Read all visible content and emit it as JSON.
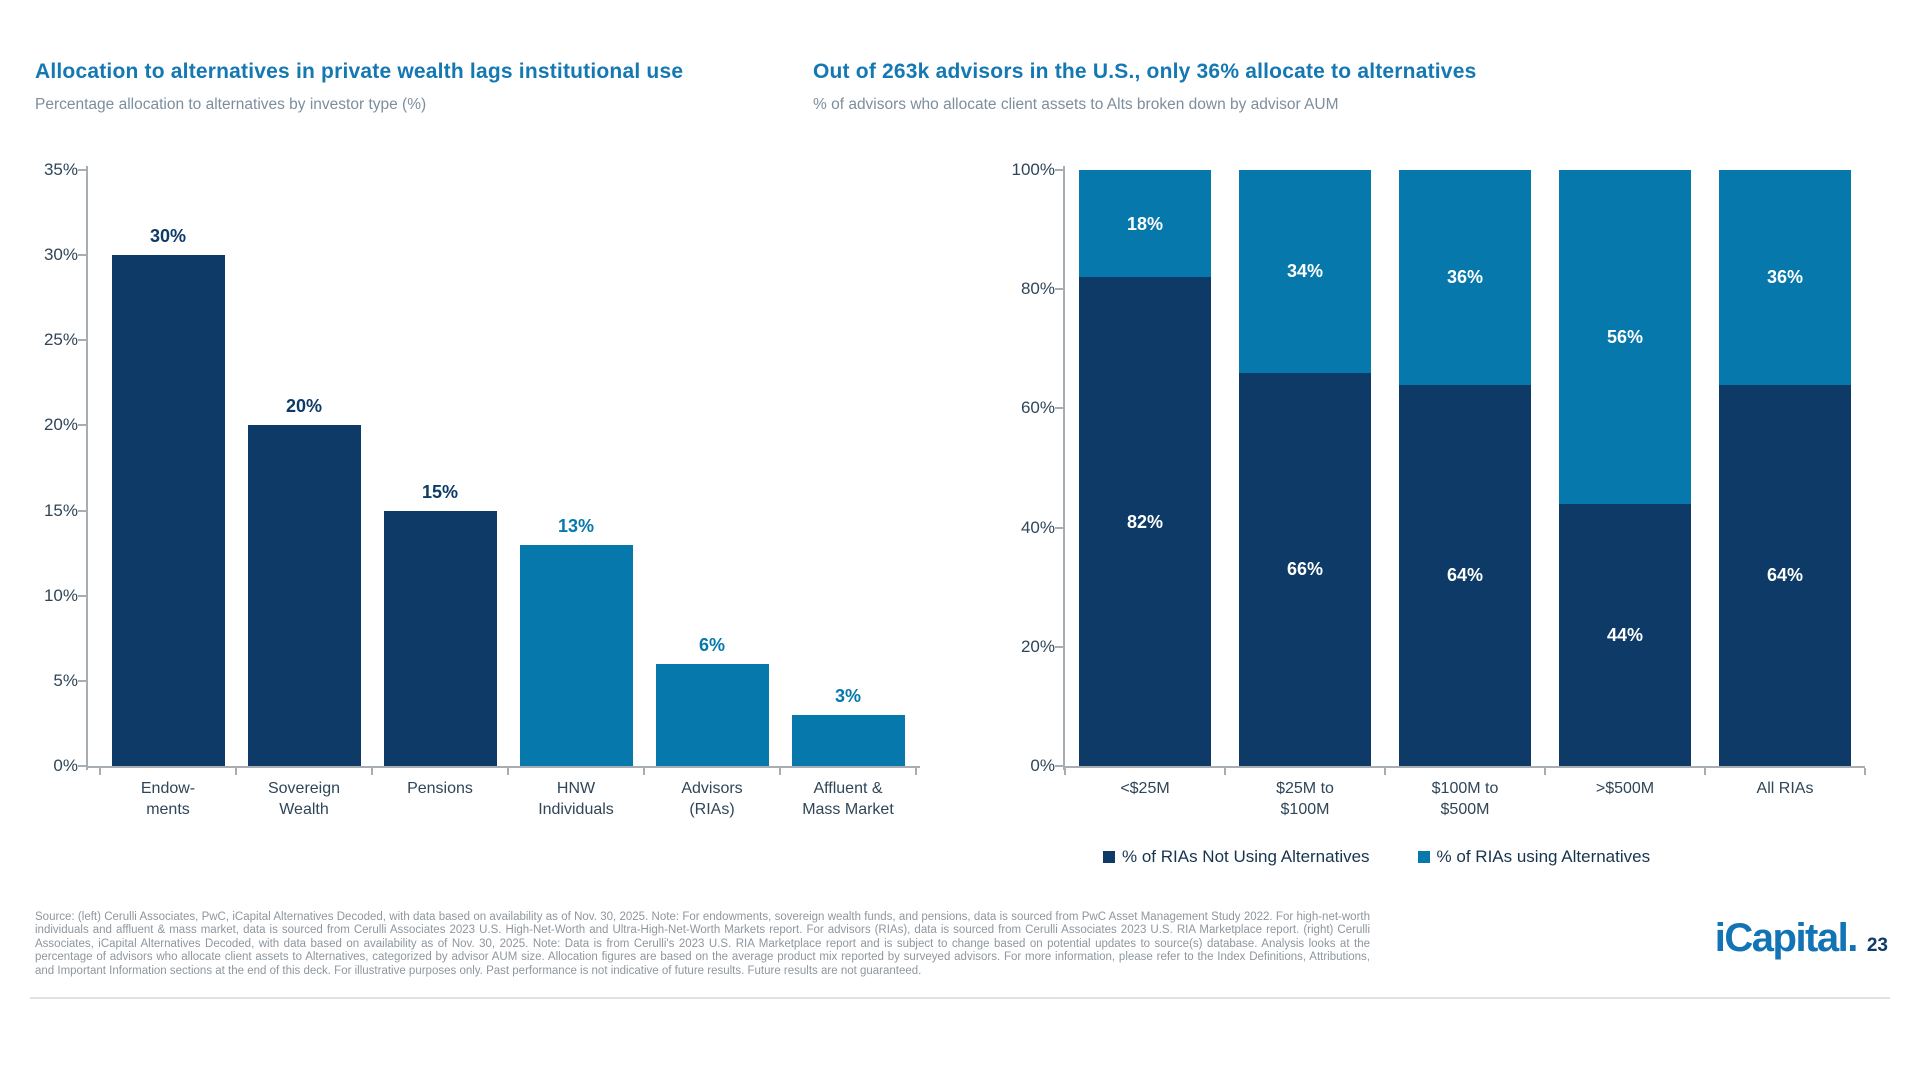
{
  "slide": {
    "background": "#ffffff"
  },
  "chart_data": [
    {
      "type": "bar",
      "title": "Allocation to alternatives in private wealth lags institutional use",
      "subtitle": "Percentage allocation to alternatives by investor type (%)",
      "categories": [
        [
          "Endow-",
          "ments"
        ],
        [
          "Sovereign",
          "Wealth"
        ],
        [
          "Pensions"
        ],
        [
          "HNW",
          "Individuals"
        ],
        [
          "Advisors",
          "(RIAs)"
        ],
        [
          "Affluent &",
          "Mass Market"
        ]
      ],
      "values": [
        30,
        20,
        15,
        13,
        6,
        3
      ],
      "value_labels": [
        "30%",
        "20%",
        "15%",
        "13%",
        "6%",
        "3%"
      ],
      "bar_colors": [
        "#0d3a67",
        "#0d3a67",
        "#0d3a67",
        "#0678ab",
        "#0678ab",
        "#0678ab"
      ],
      "xlabel": "",
      "ylabel": "",
      "ylim": [
        0,
        35
      ],
      "ytick_step": 5,
      "ytick_labels": [
        "0%",
        "5%",
        "10%",
        "15%",
        "20%",
        "25%",
        "30%",
        "35%"
      ],
      "grid": false,
      "legend_position": "none"
    },
    {
      "type": "stacked-bar",
      "title": "Out of 263k advisors in the U.S., only 36% allocate to alternatives",
      "subtitle": "% of advisors who allocate client assets to Alts broken down by advisor AUM",
      "categories": [
        [
          "<$25M"
        ],
        [
          "$25M to",
          "$100M"
        ],
        [
          "$100M to",
          "$500M"
        ],
        [
          ">$500M"
        ],
        [
          "All RIAs"
        ]
      ],
      "series": [
        {
          "name": "% of RIAs Not Using Alternatives",
          "color": "#0d3a67",
          "values": [
            82,
            66,
            64,
            44,
            64
          ],
          "value_labels": [
            "82%",
            "66%",
            "64%",
            "44%",
            "64%"
          ]
        },
        {
          "name": "% of RIAs using Alternatives",
          "color": "#0678ab",
          "values": [
            18,
            34,
            36,
            56,
            36
          ],
          "value_labels": [
            "18%",
            "34%",
            "36%",
            "56%",
            "36%"
          ]
        }
      ],
      "xlabel": "",
      "ylabel": "",
      "ylim": [
        0,
        100
      ],
      "ytick_step": 20,
      "ytick_labels": [
        "0%",
        "20%",
        "40%",
        "60%",
        "80%",
        "100%"
      ],
      "grid": false,
      "legend_position": "bottom"
    }
  ],
  "colors": {
    "title_blue": "#1478b3",
    "subtitle_gray": "#7d8e9d",
    "axis_text": "#2f4558",
    "axis_line": "#a6aeb4",
    "dark_navy": "#0d3a67",
    "light_blue": "#0678ab",
    "footer_gray": "#8d979e",
    "logo_blue": "#1273b5"
  },
  "footer": {
    "source_text": "Source: (left) Cerulli Associates, PwC, iCapital Alternatives Decoded, with data based on availability as of Nov. 30, 2025. Note: For endowments, sovereign wealth funds, and pensions, data is sourced from PwC Asset Management Study 2022. For high-net-worth individuals and affluent & mass market, data is sourced from Cerulli Associates 2023 U.S. High-Net-Worth and Ultra-High-Net-Worth Markets report. For advisors (RIAs), data is sourced from Cerulli Associates 2023 U.S. RIA Marketplace report. (right) Cerulli Associates, iCapital Alternatives Decoded, with data based on availability as of Nov. 30, 2025. Note: Data is from Cerulli's 2023 U.S. RIA Marketplace report and is subject to change based on potential updates to source(s) database. Analysis looks at the percentage of advisors who allocate client assets to Alternatives, categorized by advisor AUM size. Allocation figures are based on the average product mix reported by surveyed advisors. For more information, please refer to the Index Definitions, Attributions, and Important Information sections at the end of this deck. For illustrative purposes only. Past performance is not indicative of future results. Future results are not guaranteed.",
    "logo_text": "iCapital.",
    "page_number": "23"
  }
}
